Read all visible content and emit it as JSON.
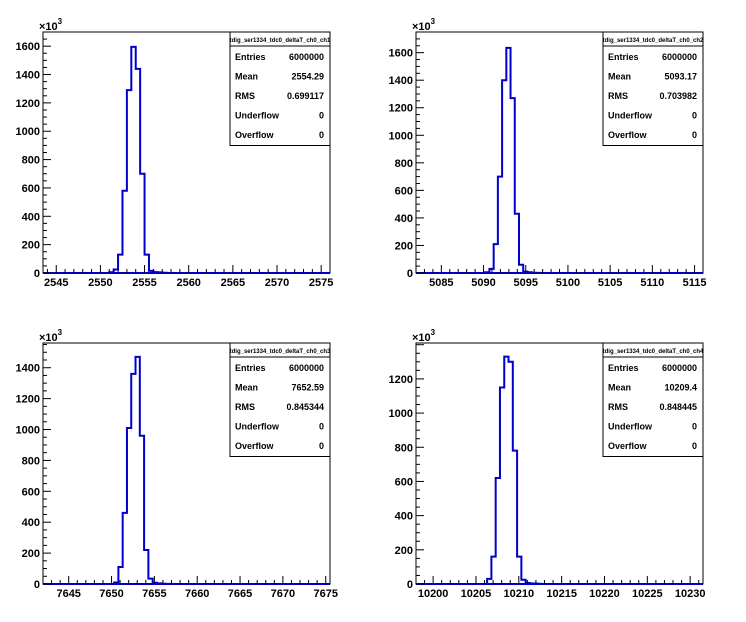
{
  "figure": {
    "line_color": "#0000cc",
    "background": "#ffffff"
  },
  "chart_data": [
    {
      "type": "bar",
      "title": "tdig_ser1334_tdc0_deltaT_ch0_ch1",
      "xlabel": "",
      "ylabel": "",
      "multiplier": "×10",
      "multiplier_exp": "3",
      "xlim": [
        2543.5,
        2576
      ],
      "ylim": [
        0,
        1700
      ],
      "x_ticks": [
        2545,
        2550,
        2555,
        2560,
        2565,
        2570,
        2575
      ],
      "y_ticks": [
        0,
        200,
        400,
        600,
        800,
        1000,
        1200,
        1400,
        1600
      ],
      "bin_edges": [
        2551,
        2551.5,
        2552,
        2552.5,
        2553,
        2553.5,
        2554,
        2554.5,
        2555,
        2555.5,
        2556,
        2556.5,
        2557,
        2557.5
      ],
      "values": [
        5,
        25,
        130,
        580,
        1290,
        1595,
        1440,
        700,
        130,
        15,
        6,
        4,
        2
      ],
      "stats": [
        {
          "label": "Entries",
          "value": "6000000"
        },
        {
          "label": "Mean",
          "value": "2554.29"
        },
        {
          "label": "RMS",
          "value": "0.699117"
        },
        {
          "label": "Underflow",
          "value": "0"
        },
        {
          "label": "Overflow",
          "value": "0"
        }
      ]
    },
    {
      "type": "bar",
      "title": "tdig_ser1334_tdc0_deltaT_ch0_ch2",
      "xlabel": "",
      "ylabel": "",
      "multiplier": "×10",
      "multiplier_exp": "3",
      "xlim": [
        5082,
        5116
      ],
      "ylim": [
        0,
        1750
      ],
      "x_ticks": [
        5085,
        5090,
        5095,
        5100,
        5105,
        5110,
        5115
      ],
      "y_ticks": [
        0,
        200,
        400,
        600,
        800,
        1000,
        1200,
        1400,
        1600
      ],
      "bin_edges": [
        5090.2,
        5090.7,
        5091.2,
        5091.7,
        5092.2,
        5092.7,
        5093.2,
        5093.7,
        5094.2,
        5094.7,
        5095.2,
        5095.7,
        5096.2,
        5096.7
      ],
      "values": [
        5,
        30,
        210,
        700,
        1400,
        1635,
        1270,
        430,
        60,
        10,
        5,
        2,
        1
      ],
      "stats": [
        {
          "label": "Entries",
          "value": "6000000"
        },
        {
          "label": "Mean",
          "value": "5093.17"
        },
        {
          "label": "RMS",
          "value": "0.703982"
        },
        {
          "label": "Underflow",
          "value": "0"
        },
        {
          "label": "Overflow",
          "value": "0"
        }
      ]
    },
    {
      "type": "bar",
      "title": "tdig_ser1334_tdc0_deltaT_ch0_ch3",
      "xlabel": "",
      "ylabel": "",
      "multiplier": "×10",
      "multiplier_exp": "3",
      "xlim": [
        7642,
        7675.5
      ],
      "ylim": [
        0,
        1560
      ],
      "x_ticks": [
        7645,
        7650,
        7655,
        7660,
        7665,
        7670,
        7675
      ],
      "y_ticks": [
        0,
        200,
        400,
        600,
        800,
        1000,
        1200,
        1400
      ],
      "bin_edges": [
        7650.3,
        7650.8,
        7651.3,
        7651.8,
        7652.3,
        7652.8,
        7653.3,
        7653.8,
        7654.3,
        7654.8,
        7655.3,
        7655.8,
        7656.3,
        7656.8
      ],
      "values": [
        10,
        110,
        460,
        1010,
        1360,
        1470,
        960,
        220,
        35,
        8,
        4,
        2,
        1
      ],
      "stats": [
        {
          "label": "Entries",
          "value": "6000000"
        },
        {
          "label": "Mean",
          "value": "7652.59"
        },
        {
          "label": "RMS",
          "value": "0.845344"
        },
        {
          "label": "Underflow",
          "value": "0"
        },
        {
          "label": "Overflow",
          "value": "0"
        }
      ]
    },
    {
      "type": "bar",
      "title": "tdig_ser1334_tdc0_deltaT_ch0_ch4",
      "xlabel": "",
      "ylabel": "",
      "multiplier": "×10",
      "multiplier_exp": "3",
      "xlim": [
        10198,
        10231.5
      ],
      "ylim": [
        0,
        1410
      ],
      "x_ticks": [
        10200,
        10205,
        10210,
        10215,
        10220,
        10225,
        10230
      ],
      "y_ticks": [
        0,
        200,
        400,
        600,
        800,
        1000,
        1200
      ],
      "bin_edges": [
        10206.3,
        10206.8,
        10207.3,
        10207.8,
        10208.3,
        10208.8,
        10209.3,
        10209.8,
        10210.3,
        10210.8,
        10211.3,
        10211.8,
        10212.3,
        10212.8
      ],
      "values": [
        30,
        160,
        620,
        1150,
        1330,
        1300,
        780,
        160,
        25,
        6,
        3,
        2,
        1
      ],
      "stats": [
        {
          "label": "Entries",
          "value": "6000000"
        },
        {
          "label": "Mean",
          "value": "10209.4"
        },
        {
          "label": "RMS",
          "value": "0.848445"
        },
        {
          "label": "Underflow",
          "value": "0"
        },
        {
          "label": "Overflow",
          "value": "0"
        }
      ]
    }
  ]
}
